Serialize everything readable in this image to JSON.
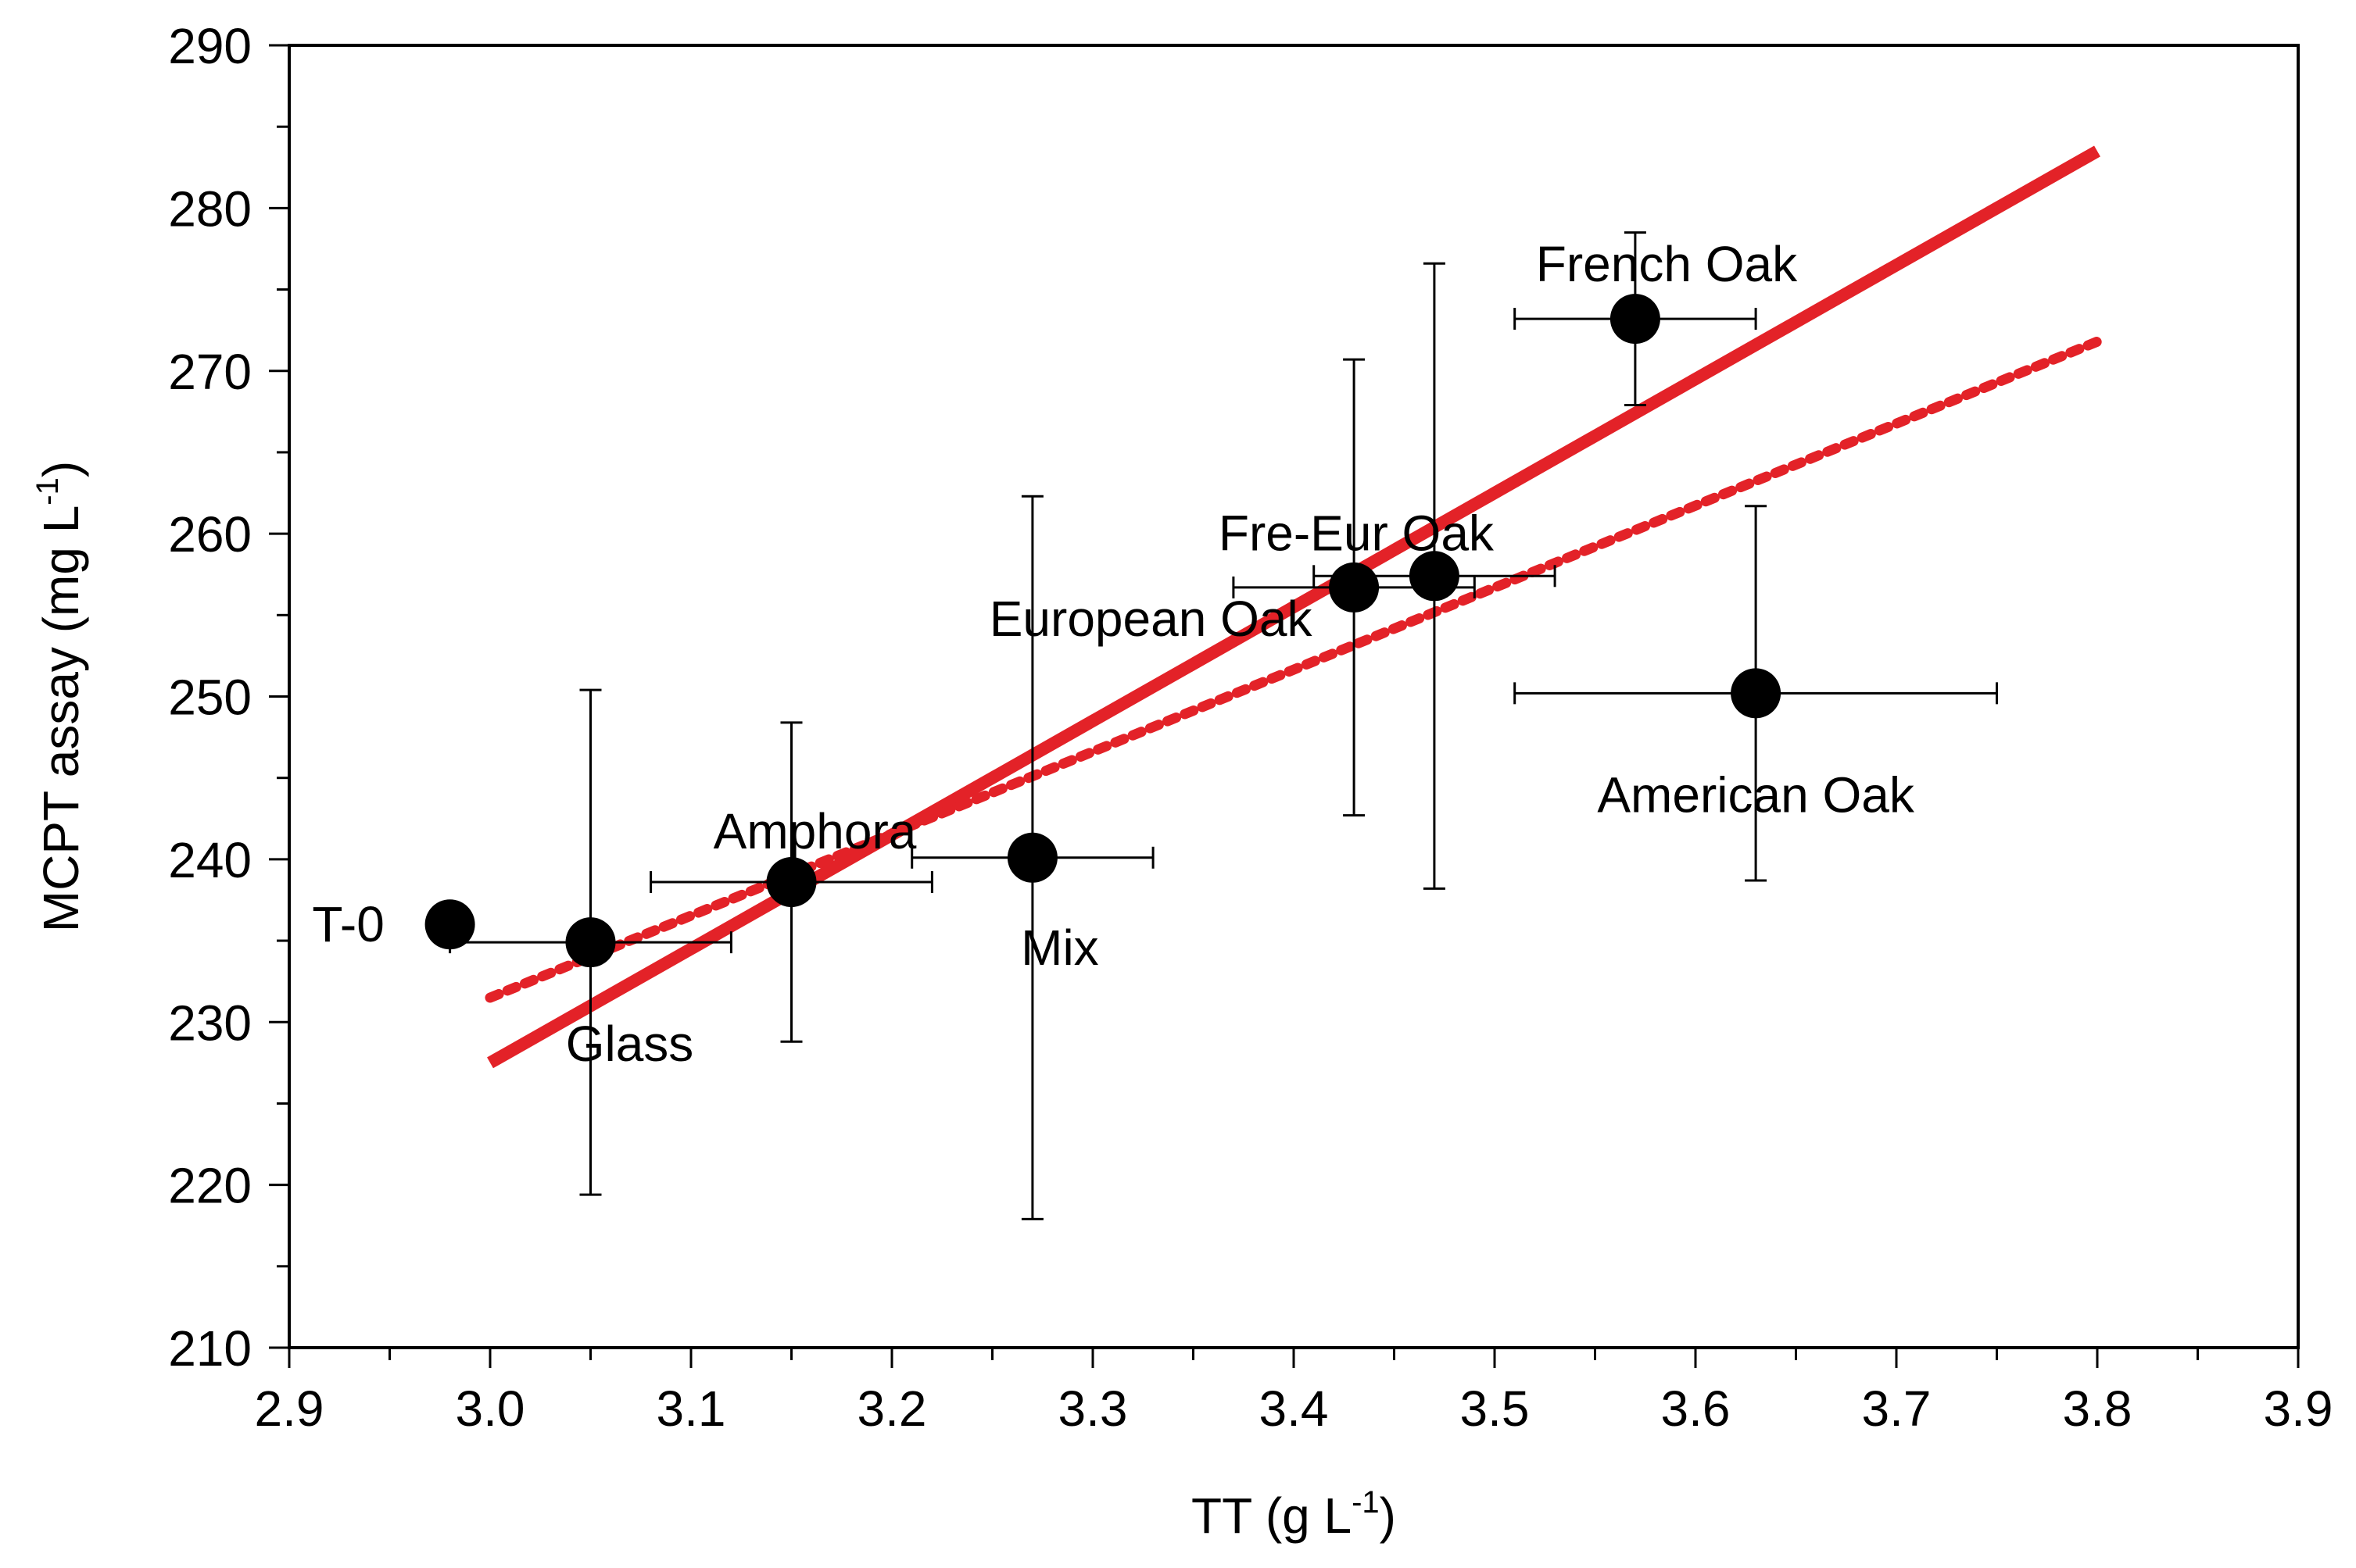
{
  "chart_data": {
    "type": "scatter",
    "title": "",
    "xlabel": {
      "text": "TT (g L",
      "sup": "-1",
      "tail": ")"
    },
    "ylabel": {
      "text": "MCPT assay (mg L",
      "sup": "-1",
      "tail": ")"
    },
    "xlim": [
      2.9,
      3.9
    ],
    "ylim": [
      210,
      290
    ],
    "x_ticks": [
      2.9,
      3.0,
      3.1,
      3.2,
      3.3,
      3.4,
      3.5,
      3.6,
      3.7,
      3.8,
      3.9
    ],
    "x_tick_labels": [
      "2.9",
      "3.0",
      "3.1",
      "3.2",
      "3.3",
      "3.4",
      "3.5",
      "3.6",
      "3.7",
      "3.8",
      "3.9"
    ],
    "y_ticks": [
      210,
      220,
      230,
      240,
      250,
      260,
      270,
      280,
      290
    ],
    "y_tick_labels": [
      "210",
      "220",
      "230",
      "240",
      "250",
      "260",
      "270",
      "280",
      "290"
    ],
    "points": [
      {
        "label": "T-0",
        "x": 2.98,
        "y": 236.0,
        "x_err": 0,
        "y_err": 0
      },
      {
        "label": "Glass",
        "x": 3.05,
        "y": 234.9,
        "x_err": 0.07,
        "y_err": 15.5
      },
      {
        "label": "Amphora",
        "x": 3.15,
        "y": 238.6,
        "x_err": 0.07,
        "y_err": 9.8
      },
      {
        "label": "Mix",
        "x": 3.27,
        "y": 240.1,
        "x_err": 0.06,
        "y_err": 22.2
      },
      {
        "label": "European Oak",
        "x": 3.43,
        "y": 256.7,
        "x_err": 0.06,
        "y_err": 14.0
      },
      {
        "label": "Fre-Eur Oak",
        "x": 3.47,
        "y": 257.4,
        "x_err": 0.06,
        "y_err": 19.2
      },
      {
        "label": "French Oak",
        "x": 3.57,
        "y": 273.2,
        "x_err": 0.06,
        "y_err": 5.3
      },
      {
        "label": "American Oak",
        "x": 3.63,
        "y": 250.2,
        "x_err": 0.12,
        "y_err": 11.5
      }
    ],
    "fit_lines": [
      {
        "style": "solid",
        "color": "#e32228",
        "x": [
          3.0,
          3.8
        ],
        "y": [
          227.5,
          283.5
        ]
      },
      {
        "style": "dotted",
        "color": "#e32228",
        "x": [
          3.0,
          3.8
        ],
        "y": [
          231.5,
          271.8
        ]
      }
    ],
    "grid": false,
    "legend": "none"
  }
}
